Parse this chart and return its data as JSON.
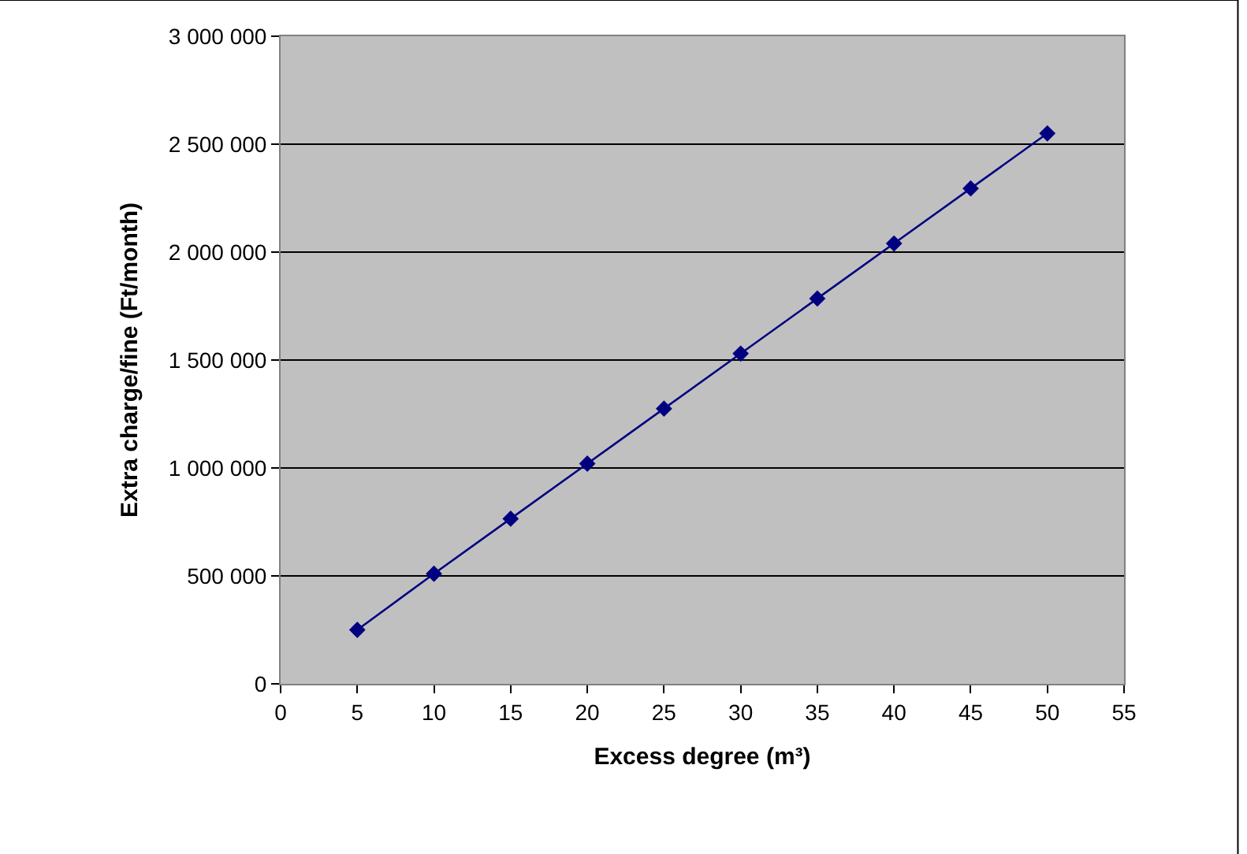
{
  "chart_data": {
    "type": "line",
    "xlabel": "Excess degree (m³)",
    "ylabel": "Extra charge/fine (Ft/month)",
    "x": [
      5,
      10,
      15,
      20,
      25,
      30,
      35,
      40,
      45,
      50
    ],
    "series": [
      {
        "color": "#000080",
        "values": [
          250000,
          510000,
          765000,
          1020000,
          1275000,
          1530000,
          1785000,
          2040000,
          2295000,
          2550000
        ]
      }
    ],
    "xlim": [
      0,
      55
    ],
    "xticks": [
      0,
      5,
      10,
      15,
      20,
      25,
      30,
      35,
      40,
      45,
      50,
      55
    ],
    "ylim": [
      0,
      3000000
    ],
    "yticks": [
      0,
      {
        "value": 500000,
        "label": "500 000"
      },
      {
        "value": 1000000,
        "label": "1 000 000"
      },
      {
        "value": 1500000,
        "label": "1 500 000"
      },
      {
        "value": 2000000,
        "label": "2 000 000"
      },
      {
        "value": 2500000,
        "label": "2 500 000"
      },
      {
        "value": 3000000,
        "label": "3 000 000"
      }
    ],
    "grid": "y",
    "marker": "diamond",
    "line_style": "solid"
  }
}
